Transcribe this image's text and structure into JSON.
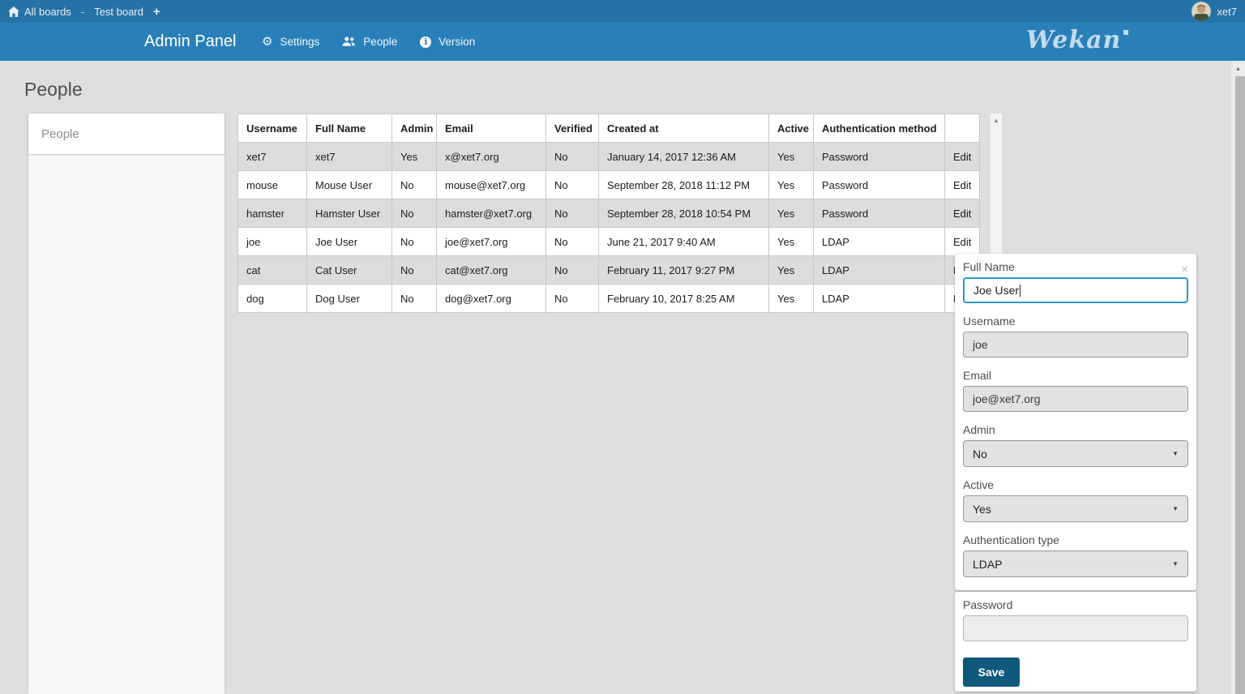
{
  "topbar": {
    "breadcrumb": {
      "all_boards": "All boards",
      "separator": "-",
      "board": "Test board"
    },
    "user_name": "xet7"
  },
  "navbar": {
    "title": "Admin Panel",
    "menu": [
      {
        "label": "Settings",
        "icon": "gear-icon"
      },
      {
        "label": "People",
        "icon": "users-icon"
      },
      {
        "label": "Version",
        "icon": "info-icon"
      }
    ],
    "logo_text": "Wekan"
  },
  "page": {
    "title": "People"
  },
  "sidebar": {
    "items": [
      {
        "label": "People",
        "selected": true
      }
    ]
  },
  "table": {
    "columns": [
      "Username",
      "Full Name",
      "Admin",
      "Email",
      "Verified",
      "Created at",
      "Active",
      "Authentication method",
      ""
    ],
    "rows": [
      [
        "xet7",
        "xet7",
        "Yes",
        "x@xet7.org",
        "No",
        "January 14, 2017 12:36 AM",
        "Yes",
        "Password",
        "Edit"
      ],
      [
        "mouse",
        "Mouse User",
        "No",
        "mouse@xet7.org",
        "No",
        "September 28, 2018 11:12 PM",
        "Yes",
        "Password",
        "Edit"
      ],
      [
        "hamster",
        "Hamster User",
        "No",
        "hamster@xet7.org",
        "No",
        "September 28, 2018 10:54 PM",
        "Yes",
        "Password",
        "Edit"
      ],
      [
        "joe",
        "Joe User",
        "No",
        "joe@xet7.org",
        "No",
        "June 21, 2017 9:40 AM",
        "Yes",
        "LDAP",
        "Edit"
      ],
      [
        "cat",
        "Cat User",
        "No",
        "cat@xet7.org",
        "No",
        "February 11, 2017 9:27 PM",
        "Yes",
        "LDAP",
        "Edit"
      ],
      [
        "dog",
        "Dog User",
        "No",
        "dog@xet7.org",
        "No",
        "February 10, 2017 8:25 AM",
        "Yes",
        "LDAP",
        "Edit"
      ]
    ]
  },
  "edit_panel": {
    "full_name": {
      "label": "Full Name",
      "value": "Joe User"
    },
    "username": {
      "label": "Username",
      "value": "joe",
      "disabled": true
    },
    "email": {
      "label": "Email",
      "value": "joe@xet7.org",
      "disabled": true
    },
    "admin": {
      "label": "Admin",
      "value": "No"
    },
    "active": {
      "label": "Active",
      "value": "Yes"
    },
    "auth_type": {
      "label": "Authentication type",
      "value": "LDAP"
    },
    "password": {
      "label": "Password",
      "value": ""
    },
    "save_label": "Save"
  },
  "icons": {
    "home_icon": "house",
    "plus_icon": "+",
    "gear_icon": "⚙",
    "users_icon": "two-person-silhouette",
    "info_icon": "i",
    "close_icon": "×",
    "dropdown_arrow_icon": "▼",
    "scroll_up_arrow_icon": "▲"
  },
  "colors": {
    "topbar_bg": "#2573a6",
    "navbar_bg": "#2980b9",
    "page_bg": "#dedede",
    "table_alt_row_bg": "#dcdcdc",
    "save_button_bg": "#10597d",
    "focused_input_border": "#2e96d8",
    "logo_color": "#c2dcef"
  }
}
